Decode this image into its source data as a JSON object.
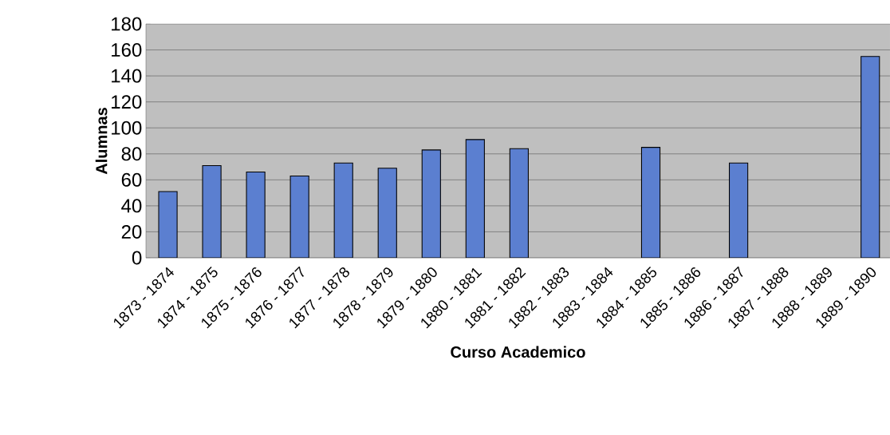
{
  "chart_data": {
    "type": "bar",
    "xlabel": "Curso Academico",
    "ylabel": "Alumnas",
    "categories": [
      "1873 - 1874",
      "1874 - 1875",
      "1875 - 1876",
      "1876 - 1877",
      "1877 - 1878",
      "1878 - 1879",
      "1879 - 1880",
      "1880 - 1881",
      "1881 - 1882",
      "1882 - 1883",
      "1883 - 1884",
      "1884 - 1885",
      "1885 - 1886",
      "1886 - 1887",
      "1887 - 1888",
      "1888 - 1889",
      "1889 - 1890"
    ],
    "values": [
      51,
      71,
      66,
      63,
      73,
      69,
      83,
      91,
      84,
      null,
      null,
      85,
      null,
      73,
      null,
      null,
      155
    ],
    "color": "#5b7fd0",
    "ylim": [
      0,
      180
    ],
    "yticks": [
      0,
      20,
      40,
      60,
      80,
      100,
      120,
      140,
      160,
      180
    ],
    "grid": "y"
  }
}
